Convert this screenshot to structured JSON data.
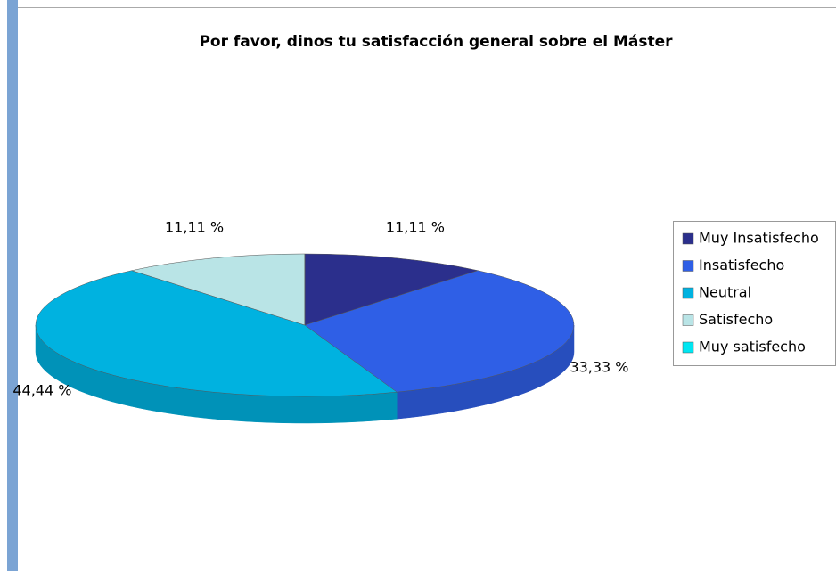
{
  "chart_data": {
    "type": "pie3d",
    "title": "Por favor, dinos tu satisfacción general sobre el Máster",
    "categories": [
      "Muy Insatisfecho",
      "Insatisfecho",
      "Neutral",
      "Satisfecho",
      "Muy satisfecho"
    ],
    "values": [
      11.11,
      33.33,
      44.44,
      11.11,
      0
    ],
    "value_labels": [
      "11,11 %",
      "33,33 %",
      "44,44 %",
      "11,11 %",
      null
    ],
    "colors": [
      "#2b2f8c",
      "#2f5fe6",
      "#00b2e0",
      "#b9e4e6",
      "#00e6f2"
    ],
    "legend": "right"
  }
}
